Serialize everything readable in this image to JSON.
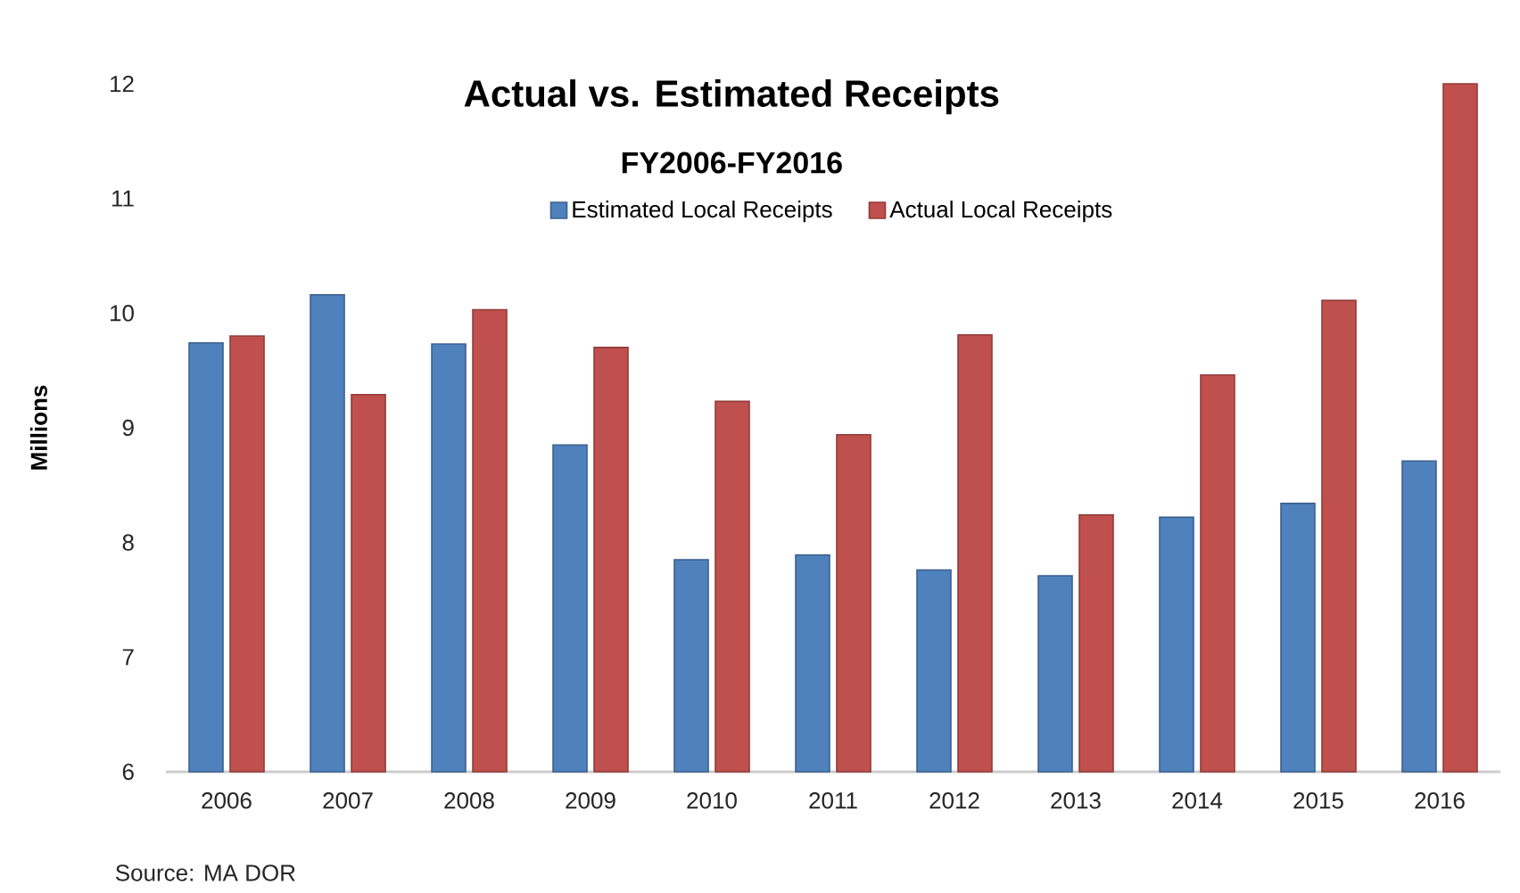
{
  "chart_data": {
    "type": "bar",
    "title": "Actual vs. Estimated Receipts",
    "subtitle": "FY2006-FY2016",
    "ylabel": "Millions",
    "categories": [
      "2006",
      "2007",
      "2008",
      "2009",
      "2010",
      "2011",
      "2012",
      "2013",
      "2014",
      "2015",
      "2016"
    ],
    "series": [
      {
        "name": "Estimated Local Receipts",
        "color": "#4f81bd",
        "values": [
          9.74,
          10.16,
          9.73,
          8.85,
          7.85,
          7.89,
          7.76,
          7.71,
          8.22,
          8.34,
          8.71
        ]
      },
      {
        "name": "Actual Local Receipts",
        "color": "#c0504d",
        "values": [
          9.8,
          9.29,
          10.03,
          9.7,
          9.23,
          8.94,
          9.81,
          8.24,
          9.46,
          10.11,
          12
        ]
      }
    ],
    "ylim": [
      6,
      12
    ],
    "yticks": [
      6,
      7,
      8,
      9,
      10,
      11,
      12
    ],
    "legend": "top",
    "annotations": [
      "Source: MA DOR"
    ]
  }
}
